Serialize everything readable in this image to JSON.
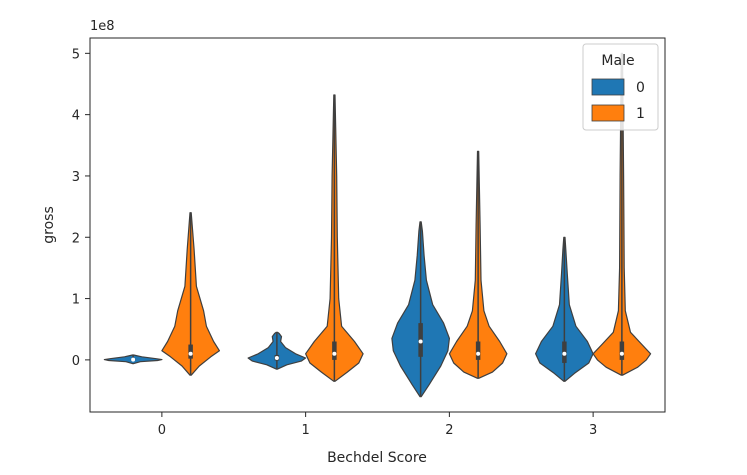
{
  "chart_data": {
    "type": "violin",
    "title": "",
    "xlabel": "Bechdel Score",
    "ylabel": "gross",
    "offset_text": "1e8",
    "categories": [
      "0",
      "1",
      "2",
      "3"
    ],
    "ylim": [
      -0.85,
      5.25
    ],
    "y_ticks": [
      0,
      1,
      2,
      3,
      4,
      5
    ],
    "grid": false,
    "legend": {
      "title": "Male",
      "placement": "top-right"
    },
    "series": [
      {
        "name": "0",
        "color": "#1f77b4",
        "violins": [
          {
            "category": "0",
            "min": -0.02,
            "max": 0.08,
            "median": 0.005,
            "q1": -0.005,
            "q3": 0.015,
            "profile": [
              [
                -0.06,
                0.0
              ],
              [
                -0.03,
                0.25
              ],
              [
                -0.01,
                0.85
              ],
              [
                0.005,
                1.0
              ],
              [
                0.02,
                0.8
              ],
              [
                0.05,
                0.3
              ],
              [
                0.08,
                0.0
              ]
            ]
          },
          {
            "category": "1",
            "min": -0.15,
            "max": 0.45,
            "median": 0.03,
            "q1": -0.01,
            "q3": 0.08,
            "profile": [
              [
                -0.15,
                0.0
              ],
              [
                -0.08,
                0.35
              ],
              [
                -0.02,
                0.85
              ],
              [
                0.03,
                1.0
              ],
              [
                0.1,
                0.65
              ],
              [
                0.2,
                0.3
              ],
              [
                0.3,
                0.13
              ],
              [
                0.38,
                0.16
              ],
              [
                0.43,
                0.08
              ],
              [
                0.45,
                0.0
              ]
            ]
          },
          {
            "category": "2",
            "min": -0.6,
            "max": 2.25,
            "median": 0.3,
            "q1": 0.05,
            "q3": 0.6,
            "profile": [
              [
                -0.6,
                0.0
              ],
              [
                -0.4,
                0.3
              ],
              [
                -0.1,
                0.7
              ],
              [
                0.15,
                0.95
              ],
              [
                0.35,
                1.0
              ],
              [
                0.6,
                0.8
              ],
              [
                0.9,
                0.42
              ],
              [
                1.3,
                0.2
              ],
              [
                1.7,
                0.12
              ],
              [
                2.1,
                0.06
              ],
              [
                2.25,
                0.0
              ]
            ]
          },
          {
            "category": "3",
            "min": -0.35,
            "max": 2.0,
            "median": 0.1,
            "q1": -0.05,
            "q3": 0.3,
            "profile": [
              [
                -0.35,
                0.0
              ],
              [
                -0.22,
                0.35
              ],
              [
                -0.05,
                0.85
              ],
              [
                0.1,
                1.0
              ],
              [
                0.3,
                0.8
              ],
              [
                0.55,
                0.4
              ],
              [
                0.9,
                0.17
              ],
              [
                1.4,
                0.1
              ],
              [
                1.8,
                0.05
              ],
              [
                2.0,
                0.0
              ]
            ]
          }
        ]
      },
      {
        "name": "1",
        "color": "#ff7f0e",
        "violins": [
          {
            "category": "0",
            "min": -0.25,
            "max": 2.4,
            "median": 0.1,
            "q1": 0.02,
            "q3": 0.25,
            "profile": [
              [
                -0.25,
                0.0
              ],
              [
                -0.1,
                0.3
              ],
              [
                0.05,
                0.7
              ],
              [
                0.15,
                1.0
              ],
              [
                0.3,
                0.8
              ],
              [
                0.55,
                0.55
              ],
              [
                0.8,
                0.45
              ],
              [
                1.2,
                0.2
              ],
              [
                1.8,
                0.12
              ],
              [
                2.4,
                0.0
              ]
            ]
          },
          {
            "category": "1",
            "min": -0.35,
            "max": 4.32,
            "median": 0.1,
            "q1": 0.0,
            "q3": 0.3,
            "profile": [
              [
                -0.35,
                0.0
              ],
              [
                -0.2,
                0.45
              ],
              [
                -0.05,
                0.85
              ],
              [
                0.1,
                1.0
              ],
              [
                0.3,
                0.7
              ],
              [
                0.55,
                0.25
              ],
              [
                1.0,
                0.15
              ],
              [
                2.0,
                0.1
              ],
              [
                3.0,
                0.08
              ],
              [
                4.32,
                0.0
              ]
            ]
          },
          {
            "category": "2",
            "min": -0.3,
            "max": 3.4,
            "median": 0.1,
            "q1": 0.0,
            "q3": 0.3,
            "profile": [
              [
                -0.3,
                0.0
              ],
              [
                -0.2,
                0.5
              ],
              [
                -0.05,
                0.85
              ],
              [
                0.1,
                1.0
              ],
              [
                0.3,
                0.75
              ],
              [
                0.55,
                0.38
              ],
              [
                0.8,
                0.2
              ],
              [
                1.3,
                0.1
              ],
              [
                2.2,
                0.07
              ],
              [
                3.4,
                0.0
              ]
            ]
          },
          {
            "category": "3",
            "min": -0.25,
            "max": 5.0,
            "median": 0.1,
            "q1": 0.0,
            "q3": 0.3,
            "profile": [
              [
                -0.25,
                0.0
              ],
              [
                -0.12,
                0.55
              ],
              [
                0.0,
                0.85
              ],
              [
                0.1,
                1.0
              ],
              [
                0.25,
                0.7
              ],
              [
                0.45,
                0.3
              ],
              [
                0.8,
                0.12
              ],
              [
                1.5,
                0.08
              ],
              [
                3.0,
                0.06
              ],
              [
                5.0,
                0.0
              ]
            ]
          }
        ]
      }
    ]
  }
}
